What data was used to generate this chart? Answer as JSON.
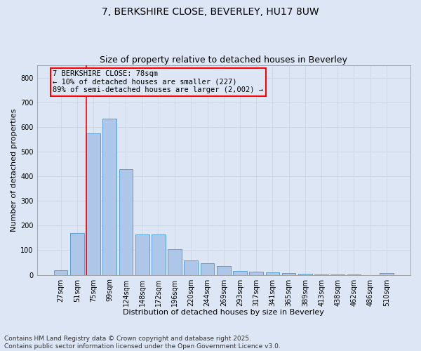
{
  "title": "7, BERKSHIRE CLOSE, BEVERLEY, HU17 8UW",
  "subtitle": "Size of property relative to detached houses in Beverley",
  "xlabel": "Distribution of detached houses by size in Beverley",
  "ylabel": "Number of detached properties",
  "categories": [
    "27sqm",
    "51sqm",
    "75sqm",
    "99sqm",
    "124sqm",
    "148sqm",
    "172sqm",
    "196sqm",
    "220sqm",
    "244sqm",
    "269sqm",
    "293sqm",
    "317sqm",
    "341sqm",
    "365sqm",
    "389sqm",
    "413sqm",
    "438sqm",
    "462sqm",
    "486sqm",
    "510sqm"
  ],
  "values": [
    20,
    170,
    575,
    635,
    430,
    165,
    165,
    103,
    58,
    48,
    35,
    15,
    12,
    9,
    8,
    5,
    3,
    2,
    1,
    0,
    8
  ],
  "bar_color": "#aec6e8",
  "bar_edge_color": "#5a9fd4",
  "vline_index": 2,
  "vline_color": "red",
  "annotation_line1": "7 BERKSHIRE CLOSE: 78sqm",
  "annotation_line2": "← 10% of detached houses are smaller (227)",
  "annotation_line3": "89% of semi-detached houses are larger (2,002) →",
  "annotation_box_color": "red",
  "ylim": [
    0,
    850
  ],
  "yticks": [
    0,
    100,
    200,
    300,
    400,
    500,
    600,
    700,
    800
  ],
  "grid_color": "#d0d8e8",
  "background_color": "#dce6f5",
  "footer_line1": "Contains HM Land Registry data © Crown copyright and database right 2025.",
  "footer_line2": "Contains public sector information licensed under the Open Government Licence v3.0.",
  "title_fontsize": 10,
  "subtitle_fontsize": 9,
  "axis_label_fontsize": 8,
  "tick_fontsize": 7,
  "annotation_fontsize": 7.5,
  "footer_fontsize": 6.5
}
